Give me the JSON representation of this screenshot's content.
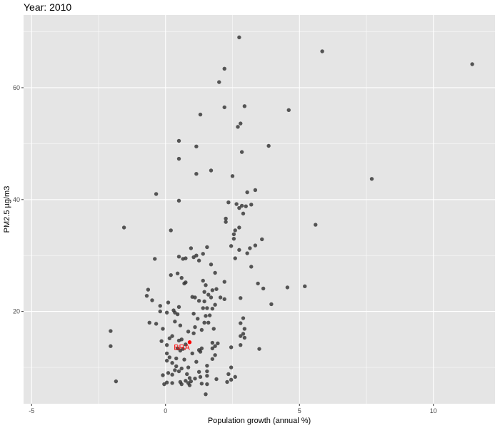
{
  "chart_data": {
    "type": "scatter",
    "title": "Year: 2010",
    "xlabel": "Population growth (annual %)",
    "ylabel": "PM2.5 µg/m3",
    "xlim": [
      -5.3,
      12.3
    ],
    "ylim": [
      3.5,
      73.0
    ],
    "x_ticks": [
      -5,
      0,
      5,
      10
    ],
    "y_ticks": [
      20,
      40,
      60
    ],
    "grid": true,
    "colors": {
      "panel": "#e5e5e5",
      "grid": "#ffffff",
      "point": "#333333",
      "highlight": "#ff0000"
    },
    "highlight": {
      "label": "BRA",
      "x": 0.9,
      "y": 14.5
    },
    "points": [
      [
        2.75,
        69.0
      ],
      [
        5.85,
        66.5
      ],
      [
        11.45,
        64.2
      ],
      [
        2.2,
        63.4
      ],
      [
        2.0,
        61.0
      ],
      [
        2.95,
        56.7
      ],
      [
        2.2,
        56.5
      ],
      [
        4.6,
        56.0
      ],
      [
        1.3,
        55.2
      ],
      [
        2.8,
        53.6
      ],
      [
        2.7,
        53.0
      ],
      [
        0.5,
        50.5
      ],
      [
        1.15,
        49.5
      ],
      [
        3.85,
        49.6
      ],
      [
        2.85,
        48.5
      ],
      [
        0.5,
        47.3
      ],
      [
        1.7,
        45.2
      ],
      [
        1.15,
        44.6
      ],
      [
        2.5,
        44.2
      ],
      [
        7.7,
        43.7
      ],
      [
        3.35,
        41.7
      ],
      [
        -0.35,
        41.0
      ],
      [
        3.05,
        41.3
      ],
      [
        0.5,
        39.8
      ],
      [
        2.35,
        39.5
      ],
      [
        2.65,
        39.2
      ],
      [
        2.85,
        38.9
      ],
      [
        3.2,
        39.1
      ],
      [
        3.0,
        38.8
      ],
      [
        2.75,
        38.5
      ],
      [
        2.9,
        37.5
      ],
      [
        2.25,
        36.6
      ],
      [
        2.25,
        36.0
      ],
      [
        5.6,
        35.5
      ],
      [
        -1.55,
        35.0
      ],
      [
        2.75,
        35.0
      ],
      [
        2.6,
        34.5
      ],
      [
        2.55,
        33.8
      ],
      [
        2.55,
        33.0
      ],
      [
        3.6,
        32.9
      ],
      [
        2.45,
        31.7
      ],
      [
        3.35,
        31.8
      ],
      [
        3.15,
        31.3
      ],
      [
        0.2,
        34.5
      ],
      [
        1.55,
        31.5
      ],
      [
        2.75,
        31.0
      ],
      [
        0.95,
        31.3
      ],
      [
        1.4,
        30.3
      ],
      [
        3.05,
        30.4
      ],
      [
        1.15,
        30.0
      ],
      [
        0.5,
        29.8
      ],
      [
        1.05,
        29.7
      ],
      [
        0.75,
        29.5
      ],
      [
        0.65,
        29.4
      ],
      [
        -0.4,
        29.4
      ],
      [
        2.6,
        29.5
      ],
      [
        1.25,
        29.1
      ],
      [
        1.7,
        28.4
      ],
      [
        3.2,
        28.0
      ],
      [
        0.45,
        26.8
      ],
      [
        1.85,
        26.9
      ],
      [
        0.2,
        26.5
      ],
      [
        0.6,
        26.0
      ],
      [
        3.45,
        25.0
      ],
      [
        1.4,
        25.5
      ],
      [
        2.2,
        25.3
      ],
      [
        0.75,
        25.2
      ],
      [
        0.7,
        25.0
      ],
      [
        1.5,
        24.7
      ],
      [
        1.9,
        24.0
      ],
      [
        4.55,
        24.3
      ],
      [
        5.2,
        24.5
      ],
      [
        -0.65,
        23.9
      ],
      [
        1.75,
        23.8
      ],
      [
        1.45,
        23.5
      ],
      [
        3.65,
        24.1
      ],
      [
        1.6,
        23.0
      ],
      [
        -0.7,
        22.8
      ],
      [
        1.0,
        22.6
      ],
      [
        2.05,
        22.5
      ],
      [
        1.1,
        22.5
      ],
      [
        1.7,
        22.5
      ],
      [
        2.2,
        22.2
      ],
      [
        2.8,
        22.4
      ],
      [
        -0.5,
        22.0
      ],
      [
        1.25,
        21.9
      ],
      [
        1.45,
        21.8
      ],
      [
        0.1,
        21.6
      ],
      [
        1.85,
        21.2
      ],
      [
        3.95,
        21.3
      ],
      [
        -0.2,
        21.0
      ],
      [
        0.5,
        20.8
      ],
      [
        1.75,
        20.5
      ],
      [
        1.4,
        20.6
      ],
      [
        1.55,
        20.6
      ],
      [
        0.3,
        20.2
      ],
      [
        -0.2,
        20.0
      ],
      [
        0.35,
        19.8
      ],
      [
        0.05,
        19.8
      ],
      [
        1.05,
        19.6
      ],
      [
        0.45,
        19.5
      ],
      [
        1.65,
        19.3
      ],
      [
        1.5,
        19.2
      ],
      [
        2.9,
        18.8
      ],
      [
        1.2,
        18.7
      ],
      [
        0.35,
        18.2
      ],
      [
        1.45,
        18.0
      ],
      [
        1.6,
        18.0
      ],
      [
        -0.6,
        18.0
      ],
      [
        -0.35,
        17.8
      ],
      [
        2.8,
        17.9
      ],
      [
        0.55,
        17.5
      ],
      [
        1.1,
        17.2
      ],
      [
        2.95,
        16.9
      ],
      [
        1.8,
        16.9
      ],
      [
        -0.1,
        16.9
      ],
      [
        1.35,
        16.7
      ],
      [
        -2.05,
        16.5
      ],
      [
        0.85,
        16.4
      ],
      [
        1.05,
        16.1
      ],
      [
        2.9,
        16.0
      ],
      [
        2.8,
        15.6
      ],
      [
        0.25,
        15.6
      ],
      [
        2.95,
        15.3
      ],
      [
        0.15,
        15.2
      ],
      [
        0.6,
        15.0
      ],
      [
        0.5,
        14.8
      ],
      [
        -0.15,
        14.7
      ],
      [
        1.75,
        14.4
      ],
      [
        1.95,
        14.3
      ],
      [
        0.75,
        14.1
      ],
      [
        0.05,
        14.0
      ],
      [
        2.8,
        14.0
      ],
      [
        -2.05,
        13.8
      ],
      [
        1.85,
        13.8
      ],
      [
        1.75,
        13.4
      ],
      [
        2.45,
        13.6
      ],
      [
        1.35,
        13.4
      ],
      [
        0.65,
        13.3
      ],
      [
        0.45,
        13.4
      ],
      [
        3.5,
        13.3
      ],
      [
        1.25,
        13.1
      ],
      [
        0.55,
        13.0
      ],
      [
        1.3,
        12.8
      ],
      [
        0.05,
        12.5
      ],
      [
        1.0,
        12.5
      ],
      [
        1.85,
        12.2
      ],
      [
        0.15,
        11.8
      ],
      [
        0.4,
        11.6
      ],
      [
        0.7,
        11.4
      ],
      [
        1.15,
        11.0
      ],
      [
        0.05,
        11.2
      ],
      [
        1.75,
        11.5
      ],
      [
        0.25,
        10.8
      ],
      [
        1.55,
        10.3
      ],
      [
        0.85,
        10.0
      ],
      [
        0.4,
        10.2
      ],
      [
        2.45,
        10.0
      ],
      [
        0.6,
        9.8
      ],
      [
        0.35,
        9.5
      ],
      [
        1.55,
        9.3
      ],
      [
        0.5,
        9.3
      ],
      [
        0.8,
        8.8
      ],
      [
        1.25,
        9.2
      ],
      [
        0.1,
        9.0
      ],
      [
        2.35,
        8.8
      ],
      [
        1.55,
        8.5
      ],
      [
        -0.1,
        8.6
      ],
      [
        0.25,
        8.7
      ],
      [
        1.3,
        8.3
      ],
      [
        0.9,
        8.1
      ],
      [
        1.1,
        8.0
      ],
      [
        1.9,
        7.9
      ],
      [
        0.75,
        7.6
      ],
      [
        2.6,
        8.3
      ],
      [
        2.45,
        7.8
      ],
      [
        0.95,
        7.5
      ],
      [
        0.55,
        7.4
      ],
      [
        0.05,
        7.3
      ],
      [
        -1.85,
        7.5
      ],
      [
        0.25,
        7.2
      ],
      [
        0.85,
        7.2
      ],
      [
        1.35,
        7.1
      ],
      [
        1.55,
        7.0
      ],
      [
        0.6,
        7.0
      ],
      [
        2.3,
        7.4
      ],
      [
        -0.05,
        7.0
      ],
      [
        0.9,
        6.8
      ],
      [
        1.5,
        5.2
      ]
    ]
  }
}
